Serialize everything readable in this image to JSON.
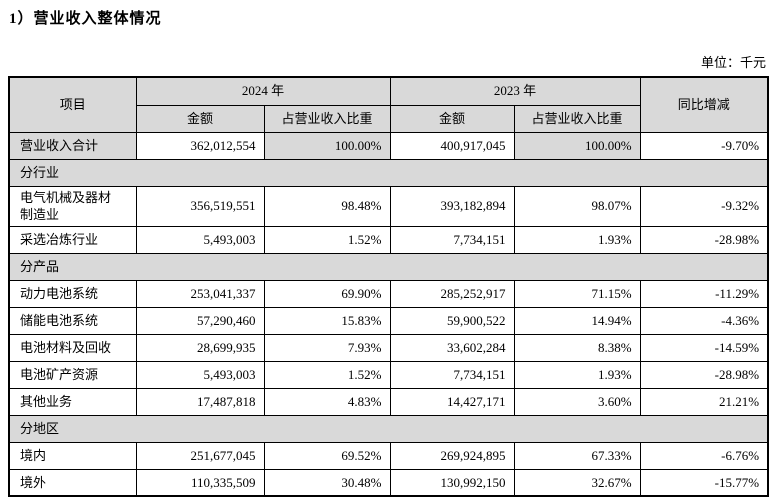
{
  "page": {
    "title": "1）营业收入整体情况",
    "unit_label": "单位：千元"
  },
  "colors": {
    "header_bg": "#d9d9d9",
    "section_bg": "#d9d9d9",
    "highlight_bg": "#d9d9d9",
    "border": "#000000",
    "text": "#000000",
    "page_bg": "#ffffff"
  },
  "table": {
    "header": {
      "item": "项目",
      "year_2024": "2024 年",
      "year_2023": "2023 年",
      "amount_2024": "金额",
      "proportion_2024": "占营业收入比重",
      "amount_2023": "金额",
      "proportion_2023": "占营业收入比重",
      "yoy": "同比增减"
    },
    "rows": [
      {
        "type": "data",
        "highlight": true,
        "label": "营业收入合计",
        "amt2024": "362,012,554",
        "pct2024": "100.00%",
        "amt2023": "400,917,045",
        "pct2023": "100.00%",
        "yoy": "-9.70%"
      },
      {
        "type": "section",
        "label": "分行业"
      },
      {
        "type": "data",
        "label": "电气机械及器材制造业",
        "amt2024": "356,519,551",
        "pct2024": "98.48%",
        "amt2023": "393,182,894",
        "pct2023": "98.07%",
        "yoy": "-9.32%"
      },
      {
        "type": "data",
        "label": "采选冶炼行业",
        "amt2024": "5,493,003",
        "pct2024": "1.52%",
        "amt2023": "7,734,151",
        "pct2023": "1.93%",
        "yoy": "-28.98%"
      },
      {
        "type": "section",
        "label": "分产品"
      },
      {
        "type": "data",
        "label": "动力电池系统",
        "amt2024": "253,041,337",
        "pct2024": "69.90%",
        "amt2023": "285,252,917",
        "pct2023": "71.15%",
        "yoy": "-11.29%"
      },
      {
        "type": "data",
        "label": "储能电池系统",
        "amt2024": "57,290,460",
        "pct2024": "15.83%",
        "amt2023": "59,900,522",
        "pct2023": "14.94%",
        "yoy": "-4.36%"
      },
      {
        "type": "data",
        "label": "电池材料及回收",
        "amt2024": "28,699,935",
        "pct2024": "7.93%",
        "amt2023": "33,602,284",
        "pct2023": "8.38%",
        "yoy": "-14.59%"
      },
      {
        "type": "data",
        "label": "电池矿产资源",
        "amt2024": "5,493,003",
        "pct2024": "1.52%",
        "amt2023": "7,734,151",
        "pct2023": "1.93%",
        "yoy": "-28.98%"
      },
      {
        "type": "data",
        "label": "其他业务",
        "amt2024": "17,487,818",
        "pct2024": "4.83%",
        "amt2023": "14,427,171",
        "pct2023": "3.60%",
        "yoy": "21.21%"
      },
      {
        "type": "section",
        "label": "分地区"
      },
      {
        "type": "data",
        "label": "境内",
        "amt2024": "251,677,045",
        "pct2024": "69.52%",
        "amt2023": "269,924,895",
        "pct2023": "67.33%",
        "yoy": "-6.76%"
      },
      {
        "type": "data",
        "label": "境外",
        "amt2024": "110,335,509",
        "pct2024": "30.48%",
        "amt2023": "130,992,150",
        "pct2023": "32.67%",
        "yoy": "-15.77%"
      }
    ]
  }
}
